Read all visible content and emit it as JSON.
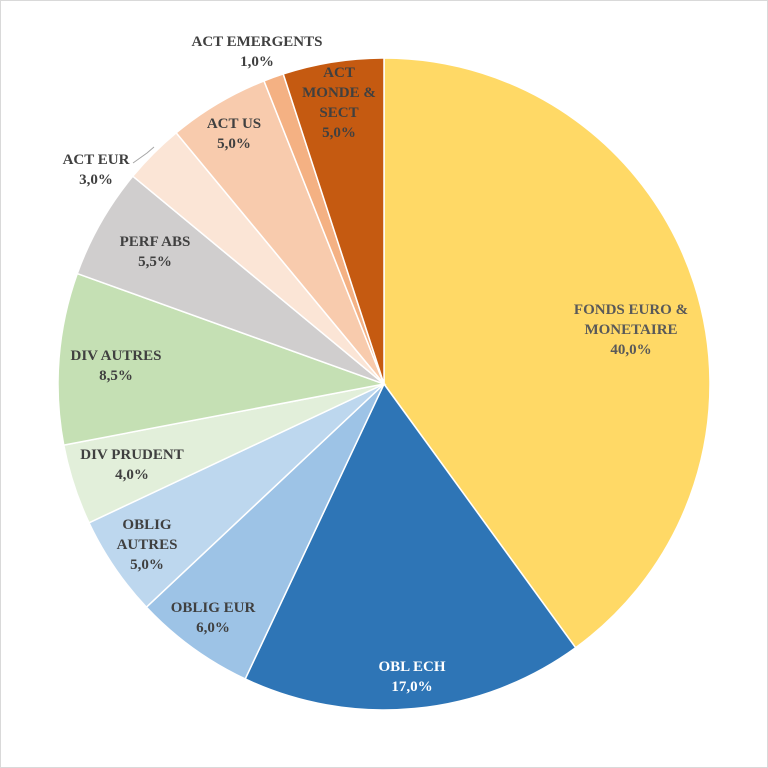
{
  "chart_data": {
    "type": "pie",
    "start_angle_deg": 0,
    "direction": "clockwise",
    "slices": [
      {
        "lines": [
          "FONDS EURO &",
          "MONETAIRE"
        ],
        "pct": "40,0%",
        "value": 40.0,
        "color": "#FFD966",
        "text_color": "#595959"
      },
      {
        "lines": [
          "OBL ECH"
        ],
        "pct": "17,0%",
        "value": 17.0,
        "color": "#2E75B6",
        "text_color": "#FFFFFF"
      },
      {
        "lines": [
          "OBLIG EUR"
        ],
        "pct": "6,0%",
        "value": 6.0,
        "color": "#9DC3E6",
        "text_color": "#404040"
      },
      {
        "lines": [
          "OBLIG",
          "AUTRES"
        ],
        "pct": "5,0%",
        "value": 5.0,
        "color": "#BDD7EE",
        "text_color": "#404040"
      },
      {
        "lines": [
          "DIV PRUDENT"
        ],
        "pct": "4,0%",
        "value": 4.0,
        "color": "#E2EFDA",
        "text_color": "#404040"
      },
      {
        "lines": [
          "DIV AUTRES"
        ],
        "pct": "8,5%",
        "value": 8.5,
        "color": "#C5E0B4",
        "text_color": "#404040"
      },
      {
        "lines": [
          "PERF ABS"
        ],
        "pct": "5,5%",
        "value": 5.5,
        "color": "#D0CECE",
        "text_color": "#404040"
      },
      {
        "lines": [
          "ACT EUR"
        ],
        "pct": "3,0%",
        "value": 3.0,
        "color": "#FBE5D6",
        "text_color": "#404040"
      },
      {
        "lines": [
          "ACT US"
        ],
        "pct": "5,0%",
        "value": 5.0,
        "color": "#F8CBAD",
        "text_color": "#404040"
      },
      {
        "lines": [
          "ACT EMERGENTS"
        ],
        "pct": "1,0%",
        "value": 1.0,
        "color": "#F4B183",
        "text_color": "#404040"
      },
      {
        "lines": [
          "ACT",
          "MONDE &",
          "SECT"
        ],
        "pct": "5,0%",
        "value": 5.0,
        "color": "#C55A11",
        "text_color": "#404040"
      }
    ]
  }
}
